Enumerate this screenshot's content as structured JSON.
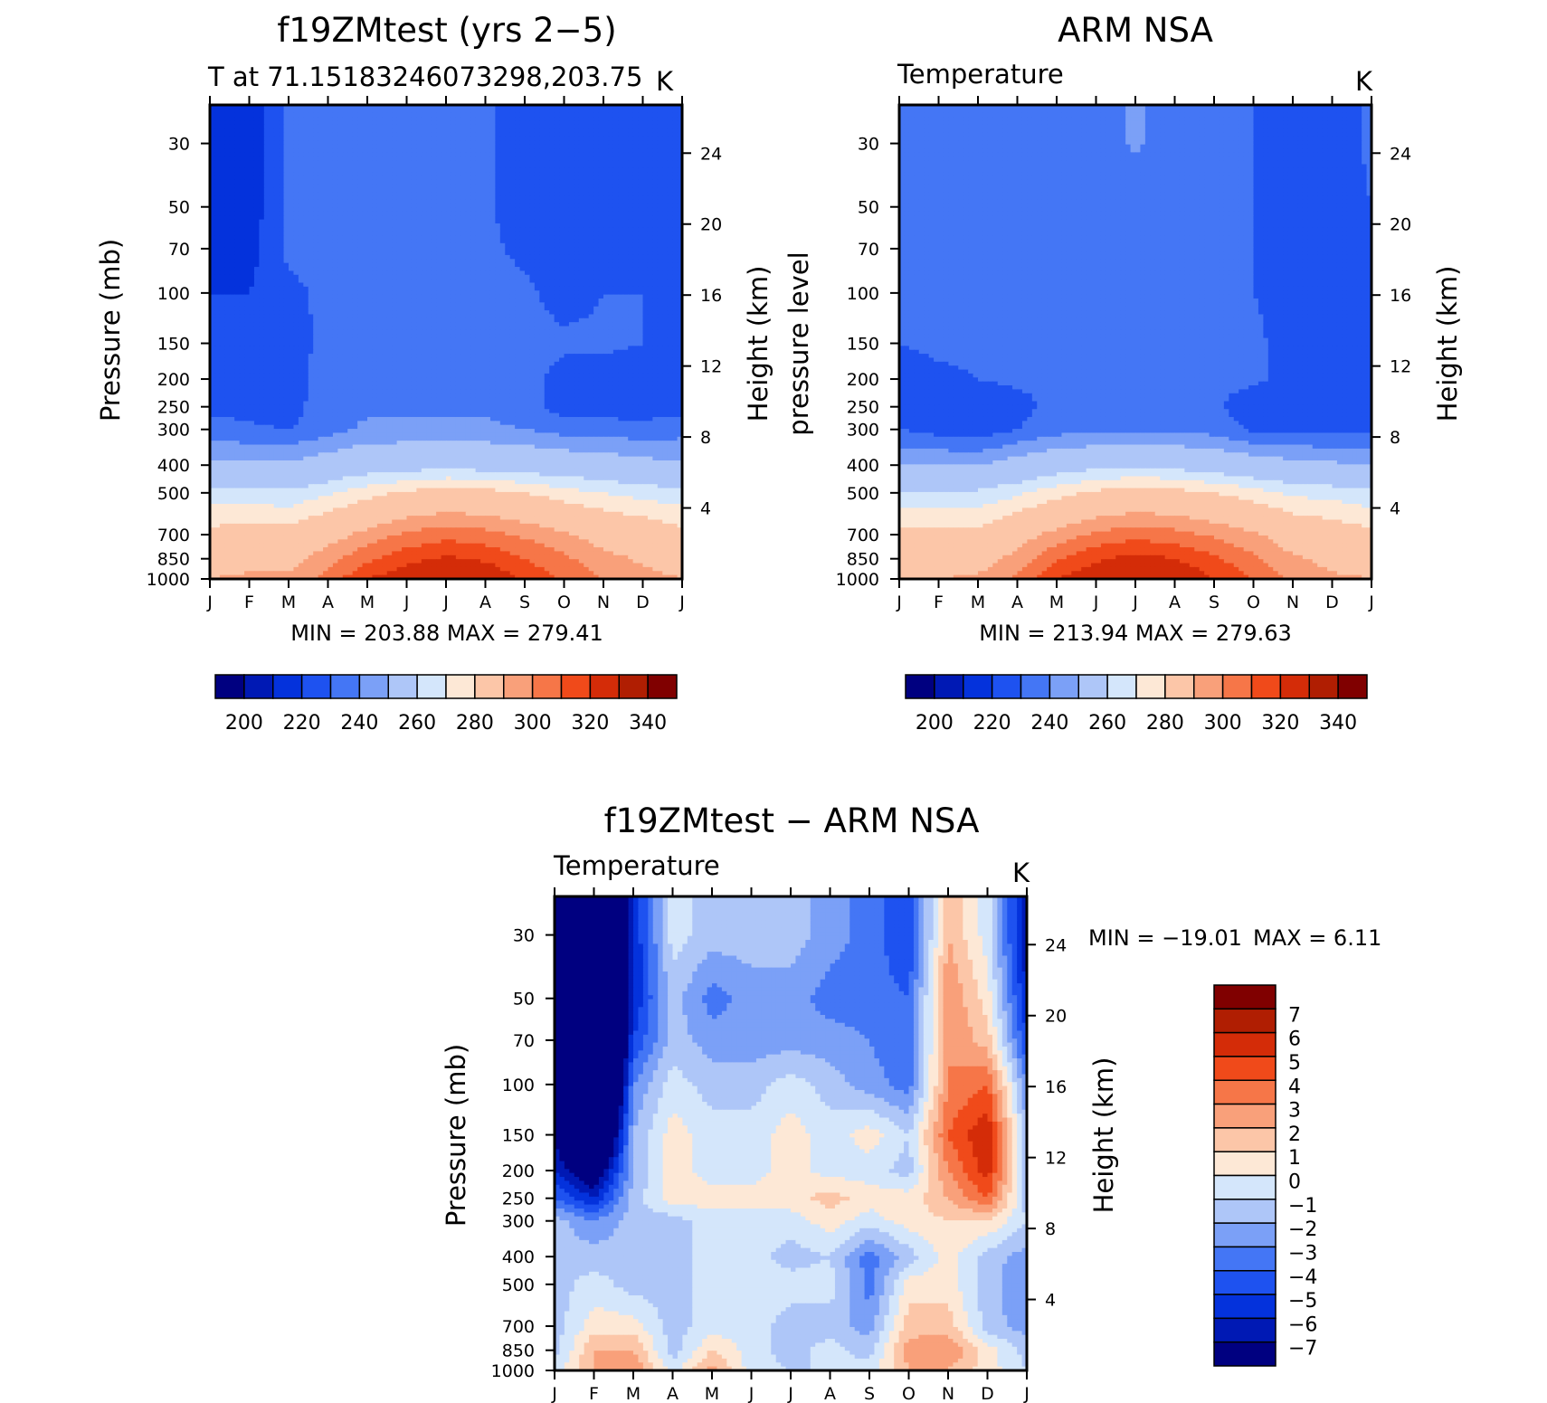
{
  "colors": {
    "temperature": [
      "#000080",
      "#0019b4",
      "#0432dc",
      "#1e52f0",
      "#4476f5",
      "#7ba0f7",
      "#aec6f8",
      "#d4e6fb",
      "#fde8d6",
      "#fcc6a8",
      "#f9a07a",
      "#f67648",
      "#f04a1a",
      "#d42c08",
      "#b01e02",
      "#800000"
    ],
    "difference": [
      "#000080",
      "#0019b4",
      "#0432dc",
      "#1e52f0",
      "#4476f5",
      "#7ba0f7",
      "#aec6f8",
      "#d4e6fb",
      "#fde8d6",
      "#fcc6a8",
      "#f9a07a",
      "#f67648",
      "#f04a1a",
      "#d42c08",
      "#b01e02",
      "#800000"
    ]
  },
  "chart_data": [
    {
      "type": "heatmap",
      "panel": "model",
      "title": "f19ZMtest (yrs 2−5)",
      "subtitle_left": "T at 71.15183246073298,203.75",
      "subtitle_right": "K",
      "ylabel": "Pressure (mb)",
      "ylabel_right": "Height (km)",
      "x_ticks": [
        "J",
        "F",
        "M",
        "A",
        "M",
        "J",
        "J",
        "A",
        "S",
        "O",
        "N",
        "D",
        "J"
      ],
      "y_ticks": [
        "30",
        "50",
        "70",
        "100",
        "150",
        "200",
        "250",
        "300",
        "400",
        "500",
        "700",
        "850",
        "1000"
      ],
      "y_ticks_right": [
        "24",
        "20",
        "16",
        "12",
        "8",
        "4"
      ],
      "stats": "MIN =  203.88  MAX =  279.41",
      "colorbar_labels": [
        "200",
        "220",
        "240",
        "260",
        "280",
        "300",
        "320",
        "340"
      ],
      "contour_levels": [
        195,
        200,
        205,
        210,
        215,
        220,
        225,
        230,
        235,
        240,
        245,
        250,
        255,
        260,
        265,
        270,
        275,
        280,
        285
      ],
      "months": [
        "J",
        "F",
        "M",
        "A",
        "M",
        "J",
        "J",
        "A",
        "S",
        "O",
        "N",
        "D",
        "J"
      ],
      "pressure_mb": [
        30,
        50,
        70,
        100,
        150,
        200,
        250,
        300,
        400,
        500,
        700,
        850,
        1000
      ],
      "values": [
        [
          207,
          207,
          216,
          216,
          216,
          216,
          216,
          216,
          212,
          212,
          212,
          212,
          212
        ],
        [
          208,
          207,
          216,
          216,
          216,
          216,
          216,
          216,
          212,
          212,
          212,
          212,
          212
        ],
        [
          209,
          208,
          216,
          216,
          216,
          216,
          216,
          216,
          214,
          212,
          214,
          214,
          212
        ],
        [
          210,
          210,
          214,
          216,
          216,
          216,
          216,
          216,
          216,
          213,
          215,
          215,
          210
        ],
        [
          211,
          211,
          212,
          217,
          217,
          217,
          217,
          217,
          217,
          216,
          216,
          215,
          211
        ],
        [
          212,
          212,
          212,
          218,
          218,
          218,
          218,
          218,
          217,
          213,
          213,
          212,
          212
        ],
        [
          213,
          213,
          212,
          219,
          219,
          219,
          219,
          219,
          218,
          212,
          212,
          212,
          213
        ],
        [
          218,
          216,
          215,
          218,
          221,
          221,
          221,
          221,
          220,
          218,
          218,
          217,
          218
        ],
        [
          226,
          226,
          226,
          229,
          231,
          232,
          233,
          232,
          231,
          230,
          229,
          227,
          226
        ],
        [
          237,
          237,
          236,
          239,
          243,
          246,
          248,
          247,
          245,
          242,
          240,
          238,
          237
        ],
        [
          247,
          248,
          248,
          252,
          257,
          261,
          263,
          262,
          259,
          256,
          252,
          250,
          247
        ],
        [
          252,
          253,
          253,
          258,
          264,
          268,
          271,
          269,
          265,
          261,
          257,
          254,
          252
        ],
        [
          255,
          256,
          256,
          262,
          270,
          274,
          277,
          275,
          269,
          264,
          260,
          257,
          255
        ]
      ]
    },
    {
      "type": "heatmap",
      "panel": "observation",
      "title": "ARM NSA",
      "subtitle_left": "Temperature",
      "subtitle_right": "K",
      "ylabel": "pressure level",
      "ylabel_right": "Height (km)",
      "x_ticks": [
        "J",
        "F",
        "M",
        "A",
        "M",
        "J",
        "J",
        "A",
        "S",
        "O",
        "N",
        "D",
        "J"
      ],
      "y_ticks": [
        "30",
        "50",
        "70",
        "100",
        "150",
        "200",
        "250",
        "300",
        "400",
        "500",
        "700",
        "850",
        "1000"
      ],
      "y_ticks_right": [
        "24",
        "20",
        "16",
        "12",
        "8",
        "4"
      ],
      "stats": "MIN =  213.94  MAX =  279.63",
      "colorbar_labels": [
        "200",
        "220",
        "240",
        "260",
        "280",
        "300",
        "320",
        "340"
      ],
      "contour_levels": [
        195,
        200,
        205,
        210,
        215,
        220,
        225,
        230,
        235,
        240,
        245,
        250,
        255,
        260,
        265,
        270,
        275,
        280,
        285
      ],
      "months": [
        "J",
        "F",
        "M",
        "A",
        "M",
        "J",
        "J",
        "A",
        "S",
        "O",
        "N",
        "D",
        "J"
      ],
      "pressure_mb": [
        30,
        50,
        70,
        100,
        150,
        200,
        250,
        300,
        400,
        500,
        700,
        850,
        1000
      ],
      "values": [
        [
          216,
          216,
          216,
          216,
          216,
          216,
          221,
          216,
          216,
          215,
          212,
          212,
          216
        ],
        [
          216,
          216,
          216,
          216,
          216,
          216,
          216,
          216,
          216,
          215,
          212,
          212,
          215
        ],
        [
          216,
          216,
          216,
          216,
          216,
          216,
          216,
          216,
          216,
          215,
          212,
          212,
          214
        ],
        [
          216,
          216,
          216,
          216,
          216,
          216,
          216,
          216,
          216,
          215,
          213,
          212,
          213
        ],
        [
          215,
          216,
          216,
          216,
          216,
          216,
          216,
          216,
          216,
          216,
          213,
          212,
          213
        ],
        [
          213,
          214,
          215,
          216,
          216,
          216,
          216,
          216,
          216,
          216,
          213,
          213,
          213
        ],
        [
          212,
          212,
          212,
          213,
          217,
          217,
          217,
          217,
          216,
          212,
          212,
          212,
          212
        ],
        [
          215,
          213,
          212,
          215,
          218,
          218,
          218,
          218,
          218,
          214,
          214,
          214,
          214
        ],
        [
          225,
          225,
          225,
          228,
          231,
          233,
          234,
          233,
          231,
          229,
          227,
          226,
          225
        ],
        [
          236,
          236,
          236,
          239,
          243,
          246,
          248,
          247,
          245,
          242,
          239,
          238,
          236
        ],
        [
          247,
          247,
          247,
          252,
          257,
          261,
          263,
          262,
          259,
          256,
          251,
          249,
          247
        ],
        [
          252,
          252,
          252,
          257,
          264,
          269,
          272,
          270,
          266,
          261,
          256,
          253,
          252
        ],
        [
          255,
          255,
          256,
          261,
          270,
          275,
          278,
          276,
          270,
          265,
          259,
          256,
          255
        ]
      ]
    },
    {
      "type": "heatmap",
      "panel": "difference",
      "title": "f19ZMtest − ARM NSA",
      "subtitle_left": "Temperature",
      "subtitle_right": "K",
      "ylabel": "Pressure (mb)",
      "ylabel_right": "Height (km)",
      "x_ticks": [
        "J",
        "F",
        "M",
        "A",
        "M",
        "J",
        "J",
        "A",
        "S",
        "O",
        "N",
        "D",
        "J"
      ],
      "y_ticks": [
        "30",
        "50",
        "70",
        "100",
        "150",
        "200",
        "250",
        "300",
        "400",
        "500",
        "700",
        "850",
        "1000"
      ],
      "y_ticks_right": [
        "24",
        "20",
        "16",
        "12",
        "8",
        "4"
      ],
      "stats_min": "MIN = −19.01",
      "stats_max": "MAX =    6.11",
      "colorbar_labels": [
        "7",
        "6",
        "5",
        "4",
        "3",
        "2",
        "1",
        "0",
        "−1",
        "−2",
        "−3",
        "−4",
        "−5",
        "−6",
        "−7"
      ],
      "contour_levels": [
        -7,
        -6,
        -5,
        -4,
        -3,
        -2,
        -1,
        0,
        1,
        2,
        3,
        4,
        5,
        6,
        7
      ],
      "months": [
        "J",
        "F",
        "M",
        "A",
        "M",
        "J",
        "J",
        "A",
        "S",
        "O",
        "N",
        "D",
        "J"
      ],
      "pressure_mb": [
        30,
        50,
        70,
        100,
        150,
        200,
        250,
        300,
        400,
        500,
        700,
        850,
        1000
      ],
      "values": [
        [
          -19,
          -19,
          -6,
          -0.5,
          -1.5,
          -1.5,
          -1.5,
          -2.5,
          -3.5,
          -5,
          2,
          -0.5,
          -7
        ],
        [
          -19,
          -19,
          -6,
          -1.5,
          -3.5,
          -2.5,
          -2.5,
          -3.5,
          -3.5,
          -4,
          3,
          0.5,
          -6
        ],
        [
          -12,
          -19,
          -5,
          -1.5,
          -2.5,
          -2.5,
          -2.5,
          -2.5,
          -3,
          -4,
          3,
          1.5,
          -5
        ],
        [
          -8,
          -19,
          -3,
          -0.5,
          -1.5,
          -1.5,
          -0.5,
          -1.5,
          -2.5,
          -3.5,
          3,
          4,
          -3
        ],
        [
          -7,
          -14,
          -2,
          0.5,
          -0.5,
          -0.5,
          0.5,
          -0.5,
          0.5,
          -1,
          4,
          6,
          -2
        ],
        [
          -6,
          -9,
          -2,
          0.5,
          -0.5,
          -0.5,
          0.5,
          -0.5,
          -0.5,
          -1.5,
          3,
          5.5,
          -1.5
        ],
        [
          -4,
          -6,
          -1.5,
          0.5,
          0.5,
          0.5,
          0.5,
          1.5,
          0.5,
          0.5,
          2,
          4,
          -1.5
        ],
        [
          -1.5,
          -3,
          -1.5,
          -1.5,
          -0.5,
          -0.5,
          -0.5,
          0.5,
          -0.5,
          0.5,
          1,
          1,
          -1
        ],
        [
          -1.5,
          -1.5,
          -1.5,
          -1.5,
          -0.5,
          -0.5,
          -1.5,
          -1,
          -3.5,
          -1.5,
          0.5,
          -1.5,
          -2.5
        ],
        [
          -1.5,
          -0.5,
          -1.5,
          -1.5,
          -0.5,
          -0.5,
          -0.5,
          -0.5,
          -3.5,
          0.5,
          0.5,
          -1.5,
          -3
        ],
        [
          -1.5,
          0.5,
          0.5,
          -1.5,
          -0.5,
          -0.5,
          -1.5,
          -1.5,
          -2.5,
          1.5,
          1.5,
          -1.5,
          -2.5
        ],
        [
          -1.5,
          2,
          2,
          -1.5,
          1,
          -0.5,
          -1.5,
          -0.5,
          -1.5,
          2.5,
          3,
          0.5,
          -1.5
        ],
        [
          -0.5,
          2,
          3,
          -0.5,
          2.5,
          -0.5,
          -1,
          -1,
          -0.5,
          2,
          2,
          0.5,
          -1
        ]
      ]
    }
  ]
}
